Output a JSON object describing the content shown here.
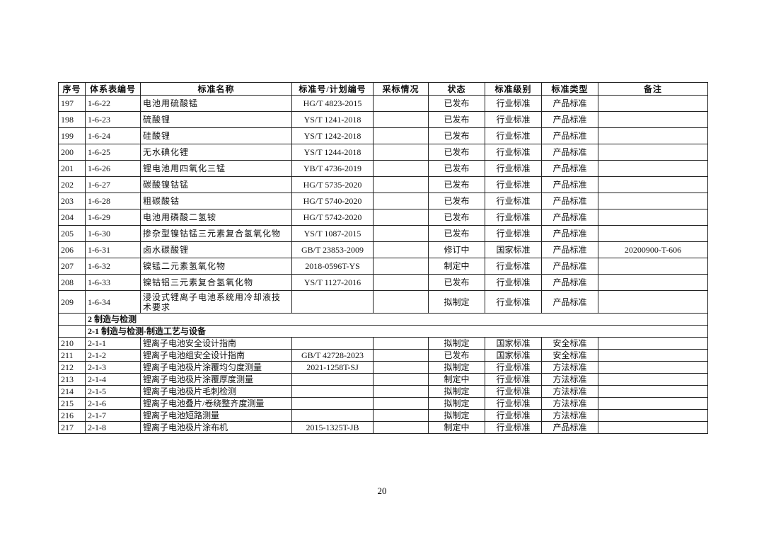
{
  "table": {
    "columns": [
      "序号",
      "体系表编号",
      "标准名称",
      "标准号/计划编号",
      "采标情况",
      "状态",
      "标准级别",
      "标准类型",
      "备注"
    ],
    "rows": [
      {
        "no": "197",
        "code": "1-6-22",
        "name": "电池用硫酸锰",
        "std": "HG/T 4823-2015",
        "status": "已发布",
        "level": "行业标准",
        "type": "产品标准"
      },
      {
        "no": "198",
        "code": "1-6-23",
        "name": "硫酸锂",
        "std": "YS/T 1241-2018",
        "status": "已发布",
        "level": "行业标准",
        "type": "产品标准"
      },
      {
        "no": "199",
        "code": "1-6-24",
        "name": "硅酸锂",
        "std": "YS/T 1242-2018",
        "status": "已发布",
        "level": "行业标准",
        "type": "产品标准"
      },
      {
        "no": "200",
        "code": "1-6-25",
        "name": "无水碘化锂",
        "std": "YS/T 1244-2018",
        "status": "已发布",
        "level": "行业标准",
        "type": "产品标准"
      },
      {
        "no": "201",
        "code": "1-6-26",
        "name": "锂电池用四氧化三锰",
        "std": "YB/T 4736-2019",
        "status": "已发布",
        "level": "行业标准",
        "type": "产品标准"
      },
      {
        "no": "202",
        "code": "1-6-27",
        "name": "碳酸镍钴锰",
        "std": "HG/T 5735-2020",
        "status": "已发布",
        "level": "行业标准",
        "type": "产品标准"
      },
      {
        "no": "203",
        "code": "1-6-28",
        "name": "粗碳酸钴",
        "std": "HG/T 5740-2020",
        "status": "已发布",
        "level": "行业标准",
        "type": "产品标准"
      },
      {
        "no": "204",
        "code": "1-6-29",
        "name": "电池用磷酸二氢铵",
        "std": "HG/T 5742-2020",
        "status": "已发布",
        "level": "行业标准",
        "type": "产品标准"
      },
      {
        "no": "205",
        "code": "1-6-30",
        "name": "掺杂型镍钴锰三元素复合氢氧化物",
        "std": "YS/T 1087-2015",
        "status": "已发布",
        "level": "行业标准",
        "type": "产品标准"
      },
      {
        "no": "206",
        "code": "1-6-31",
        "name": "卤水碳酸锂",
        "std": "GB/T 23853-2009",
        "status": "修订中",
        "level": "国家标准",
        "type": "产品标准",
        "note": "20200900-T-606"
      },
      {
        "no": "207",
        "code": "1-6-32",
        "name": "镍锰二元素氢氧化物",
        "std": "2018-0596T-YS",
        "status": "制定中",
        "level": "行业标准",
        "type": "产品标准"
      },
      {
        "no": "208",
        "code": "1-6-33",
        "name": "镍钴铝三元素复合氢氧化物",
        "std": "YS/T 1127-2016",
        "status": "已发布",
        "level": "行业标准",
        "type": "产品标准"
      },
      {
        "no": "209",
        "code": "1-6-34",
        "name": "浸没式锂离子电池系统用冷却液技术要求",
        "status": "拟制定",
        "level": "行业标准",
        "type": "产品标准"
      },
      {
        "section": "2 制造与检测"
      },
      {
        "section": "2-1 制造与检测-制造工艺与设备"
      },
      {
        "no": "210",
        "code": "2-1-1",
        "name": "锂离子电池安全设计指南",
        "status": "拟制定",
        "level": "国家标准",
        "type": "安全标准"
      },
      {
        "no": "211",
        "code": "2-1-2",
        "name": "锂离子电池组安全设计指南",
        "std": "GB/T 42728-2023",
        "status": "已发布",
        "level": "国家标准",
        "type": "安全标准"
      },
      {
        "no": "212",
        "code": "2-1-3",
        "name": "锂离子电池极片涂覆均匀度测量",
        "std": "2021-1258T-SJ",
        "status": "拟制定",
        "level": "行业标准",
        "type": "方法标准"
      },
      {
        "no": "213",
        "code": "2-1-4",
        "name": "锂离子电池极片涂覆厚度测量",
        "status": "制定中",
        "level": "行业标准",
        "type": "方法标准"
      },
      {
        "no": "214",
        "code": "2-1-5",
        "name": "锂离子电池极片毛刺检测",
        "status": "拟制定",
        "level": "行业标准",
        "type": "方法标准"
      },
      {
        "no": "215",
        "code": "2-1-6",
        "name": "锂离子电池叠片/卷绕整齐度测量",
        "status": "拟制定",
        "level": "行业标准",
        "type": "方法标准"
      },
      {
        "no": "216",
        "code": "2-1-7",
        "name": "锂离子电池短路测量",
        "status": "拟制定",
        "level": "行业标准",
        "type": "方法标准"
      },
      {
        "no": "217",
        "code": "2-1-8",
        "name": "锂离子电池极片涂布机",
        "std": "2015-1325T-JB",
        "status": "制定中",
        "level": "行业标准",
        "type": "产品标准"
      }
    ]
  },
  "footer": {
    "page": "20"
  }
}
